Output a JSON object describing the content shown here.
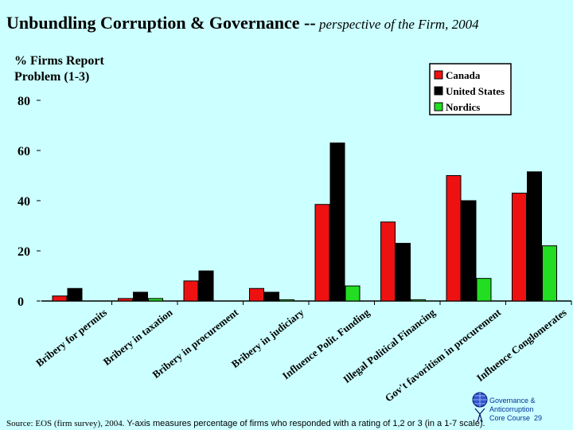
{
  "title_main": "Unbundling Corruption & Governance --",
  "title_sub": " perspective of the Firm,  2004",
  "footer_source": "Source:  EOS (firm survey), 2004.",
  "footer_text": "  Y-axis measures percentage of firms who responded with a rating of 1,2 or 3 (in a 1-7 scale).",
  "logo": {
    "line1": "Governance &",
    "line2": "Anticorruption",
    "line3": "Core Course",
    "page": "29"
  },
  "chart_data": {
    "type": "bar",
    "ylabel_lines": [
      "% Firms Report",
      "Problem (1-3)"
    ],
    "ylim": [
      0,
      80
    ],
    "yticks": [
      0,
      20,
      40,
      60,
      80
    ],
    "categories": [
      "Bribery for permits",
      "Bribery in taxation",
      "Bribery in procurement",
      "Bribery in judiciary",
      "Influence Polit. Funding",
      "Illegal Political Financing",
      "Gov't favoritism in procurement",
      "Influence Conglomerates"
    ],
    "series": [
      {
        "name": "Canada",
        "color": "#ee1111",
        "values": [
          2,
          1,
          8,
          5,
          38.5,
          31.5,
          50,
          43
        ]
      },
      {
        "name": "United States",
        "color": "#000000",
        "values": [
          5,
          3.5,
          12,
          3.5,
          63,
          23,
          40,
          51.5
        ]
      },
      {
        "name": "Nordics",
        "color": "#22dd22",
        "values": [
          0,
          1,
          0,
          0.5,
          6,
          0.5,
          9,
          22
        ]
      }
    ]
  }
}
